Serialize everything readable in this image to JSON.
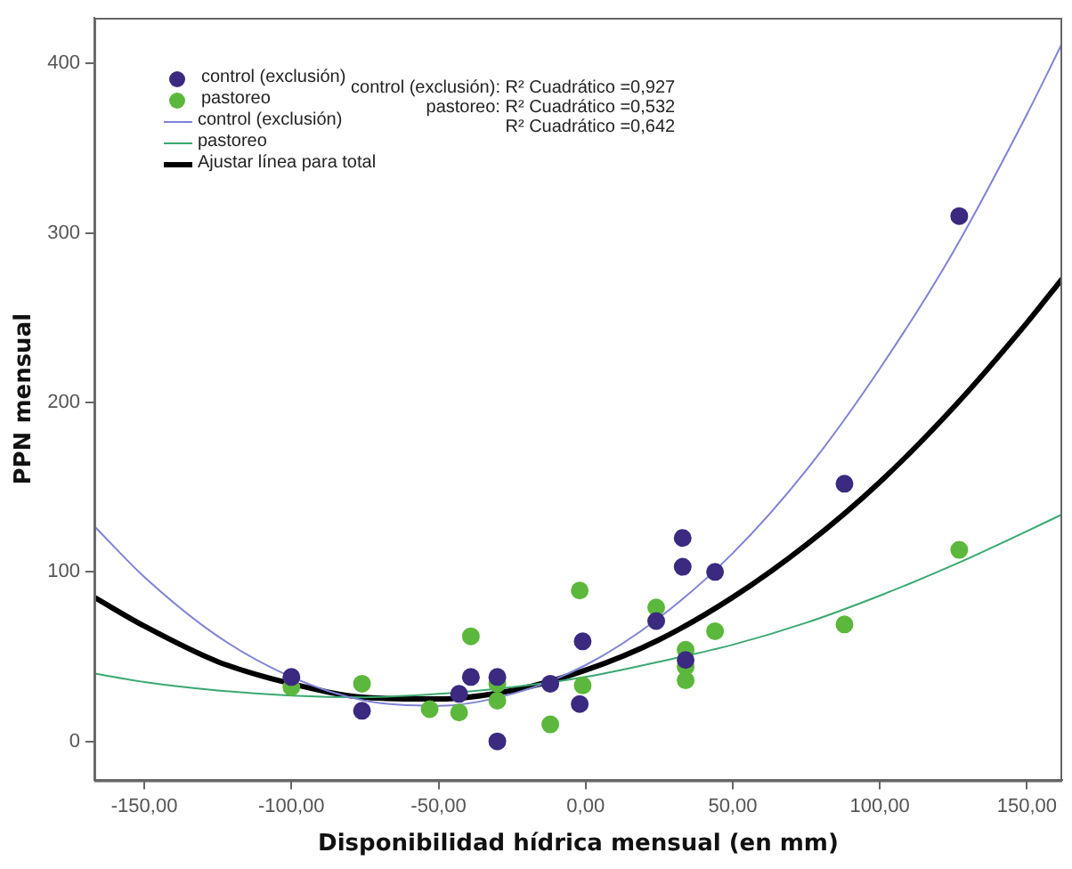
{
  "chart_data": {
    "type": "scatter",
    "xlabel": "Disponibilidad hídrica mensual (en mm)",
    "ylabel": "PPN mensual",
    "xlim": [
      -167,
      162
    ],
    "ylim": [
      -23,
      427
    ],
    "xticks": [
      {
        "value": -150,
        "label": "-150,00"
      },
      {
        "value": -100,
        "label": "-100,00"
      },
      {
        "value": -50,
        "label": "-50,00"
      },
      {
        "value": 0,
        "label": "0,00"
      },
      {
        "value": 50,
        "label": "50,00"
      },
      {
        "value": 100,
        "label": "100,00"
      },
      {
        "value": 150,
        "label": "150,00"
      }
    ],
    "yticks": [
      0,
      100,
      200,
      300,
      400
    ],
    "grid": false,
    "legend": "top left",
    "line_style": "solid",
    "annotations": [
      "control (exclusión): R² Cuadrático =0,927",
      "pastoreo: R² Cuadrático =0,532",
      "R² Cuadrático =0,642"
    ],
    "series": [
      {
        "name": "control (exclusión)",
        "marker": "circle",
        "color": "#3b2a80",
        "x": [
          -100,
          -76,
          -43,
          -39,
          -30,
          -30,
          -12,
          -1,
          -2,
          24,
          33,
          33,
          34,
          44,
          88,
          127
        ],
        "values": [
          38,
          18,
          28,
          38,
          38,
          0,
          34,
          59,
          22,
          71,
          120,
          103,
          48,
          100,
          152,
          310
        ]
      },
      {
        "name": "pastoreo",
        "marker": "circle",
        "color": "#5cb83c",
        "x": [
          -100,
          -76,
          -53,
          -43,
          -39,
          -30,
          -30,
          -12,
          -2,
          -1,
          24,
          34,
          34,
          34,
          44,
          88,
          127
        ],
        "values": [
          32,
          34,
          19,
          17,
          62,
          34,
          24,
          10,
          89,
          33,
          79,
          54,
          44,
          36,
          65,
          69,
          113
        ]
      },
      {
        "name": "control (exclusión)",
        "type": "line",
        "marker": "none",
        "color": "#7f82d6",
        "x": [
          -167,
          -150,
          -125,
          -100,
          -75,
          -50,
          -25,
          0,
          25,
          50,
          75,
          100,
          125,
          150,
          162
        ],
        "values": [
          127,
          97,
          62,
          38,
          24,
          21,
          28,
          45,
          73,
          111,
          160,
          220,
          289,
          370,
          412
        ]
      },
      {
        "name": "pastoreo",
        "type": "line",
        "marker": "none",
        "color": "#3aa870",
        "x": [
          -167,
          -150,
          -125,
          -100,
          -75,
          -50,
          -25,
          0,
          25,
          50,
          75,
          100,
          125,
          150,
          162
        ],
        "values": [
          40,
          35,
          30,
          27,
          26,
          28,
          32,
          38,
          47,
          57,
          70,
          86,
          104,
          124,
          134
        ]
      },
      {
        "name": "Ajustar línea para total",
        "type": "line",
        "marker": "none",
        "color": "#000000",
        "x": [
          -167,
          -150,
          -125,
          -100,
          -75,
          -50,
          -25,
          0,
          25,
          50,
          75,
          100,
          125,
          150,
          162
        ],
        "values": [
          85,
          68,
          47,
          34,
          26,
          25,
          30,
          42,
          60,
          85,
          116,
          153,
          197,
          247,
          273
        ]
      }
    ]
  }
}
